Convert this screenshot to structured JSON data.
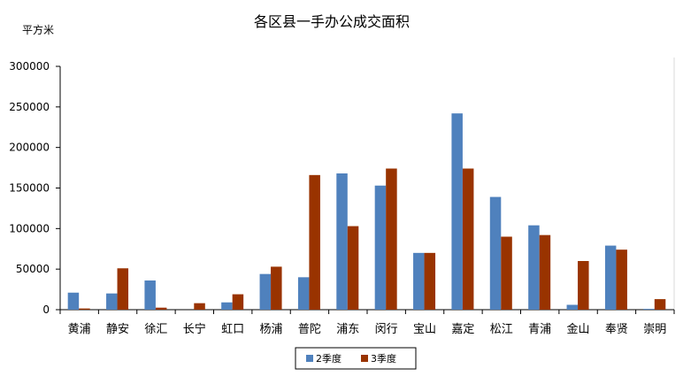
{
  "chart_data": {
    "type": "bar",
    "title": "各区县一手办公成交面积",
    "ylabel": "平方米",
    "xlabel": "",
    "ylim": [
      0,
      300000
    ],
    "yticks": [
      0,
      50000,
      100000,
      150000,
      200000,
      250000,
      300000
    ],
    "grid": false,
    "legend_position": "bottom",
    "categories": [
      "黄浦",
      "静安",
      "徐汇",
      "长宁",
      "虹口",
      "杨浦",
      "普陀",
      "浦东",
      "闵行",
      "宝山",
      "嘉定",
      "松江",
      "青浦",
      "金山",
      "奉贤",
      "崇明"
    ],
    "series": [
      {
        "name": "2季度",
        "color": "#4F81BD",
        "values": [
          21000,
          20000,
          36000,
          0,
          9000,
          44000,
          40000,
          168000,
          153000,
          70000,
          242000,
          139000,
          104000,
          6000,
          79000,
          1000
        ]
      },
      {
        "name": "3季度",
        "color": "#993300",
        "values": [
          1500,
          51000,
          2500,
          8000,
          19000,
          53000,
          166000,
          103000,
          174000,
          70000,
          174000,
          90000,
          92000,
          60000,
          74000,
          13000
        ]
      }
    ]
  }
}
